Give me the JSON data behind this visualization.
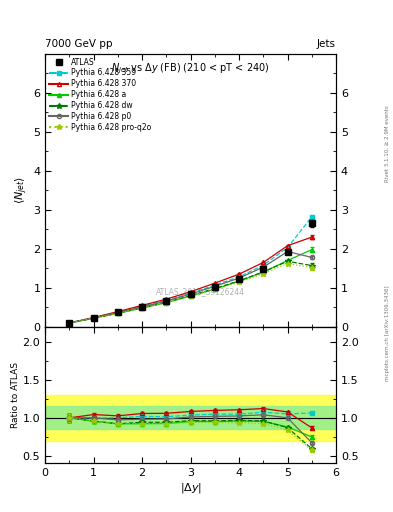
{
  "title_top": "7000 GeV pp",
  "title_top_right": "Jets",
  "main_title": "$N_{jet}$ vs $\\Delta y$ (FB) (210 < pT < 240)",
  "watermark": "ATLAS_2011_S9126244",
  "right_label_top": "Rivet 3.1.10, ≥ 2.9M events",
  "right_label_bottom": "mcplots.cern.ch [arXiv:1306.3436]",
  "ylabel_main": "$\\langle N_{jet}\\rangle$",
  "ylabel_ratio": "Ratio to ATLAS",
  "xlabel": "$|\\Delta y|$",
  "x_values": [
    0.5,
    1.0,
    1.5,
    2.0,
    2.5,
    3.0,
    3.5,
    4.0,
    4.5,
    5.0,
    5.5
  ],
  "atlas_y": [
    0.1,
    0.23,
    0.38,
    0.52,
    0.67,
    0.83,
    1.02,
    1.22,
    1.47,
    1.93,
    2.65
  ],
  "atlas_yerr": [
    0.01,
    0.01,
    0.01,
    0.02,
    0.02,
    0.02,
    0.03,
    0.03,
    0.04,
    0.05,
    0.09
  ],
  "p359_y": [
    0.1,
    0.23,
    0.38,
    0.53,
    0.68,
    0.86,
    1.07,
    1.28,
    1.58,
    2.03,
    2.82
  ],
  "p359_yerr": [
    0.005,
    0.005,
    0.007,
    0.009,
    0.01,
    0.012,
    0.014,
    0.016,
    0.019,
    0.024,
    0.032
  ],
  "p370_y": [
    0.1,
    0.24,
    0.39,
    0.55,
    0.71,
    0.9,
    1.12,
    1.35,
    1.65,
    2.08,
    2.3
  ],
  "p370_yerr": [
    0.005,
    0.006,
    0.008,
    0.01,
    0.011,
    0.013,
    0.016,
    0.019,
    0.023,
    0.029,
    0.055
  ],
  "pa_y": [
    0.1,
    0.22,
    0.35,
    0.48,
    0.62,
    0.79,
    0.97,
    1.17,
    1.4,
    1.7,
    1.98
  ],
  "pa_yerr": [
    0.005,
    0.005,
    0.007,
    0.009,
    0.01,
    0.012,
    0.013,
    0.016,
    0.019,
    0.024,
    0.055
  ],
  "pdw_y": [
    0.1,
    0.22,
    0.35,
    0.49,
    0.63,
    0.8,
    0.98,
    1.18,
    1.41,
    1.68,
    1.57
  ],
  "pdw_yerr": [
    0.005,
    0.005,
    0.007,
    0.009,
    0.01,
    0.012,
    0.013,
    0.016,
    0.019,
    0.024,
    0.055
  ],
  "pp0_y": [
    0.1,
    0.23,
    0.37,
    0.51,
    0.66,
    0.84,
    1.04,
    1.25,
    1.53,
    1.93,
    1.78
  ],
  "pp0_yerr": [
    0.005,
    0.005,
    0.007,
    0.009,
    0.01,
    0.012,
    0.014,
    0.016,
    0.019,
    0.024,
    0.04
  ],
  "pproq2o_y": [
    0.1,
    0.22,
    0.35,
    0.48,
    0.62,
    0.78,
    0.96,
    1.14,
    1.36,
    1.62,
    1.52
  ],
  "pproq2o_yerr": [
    0.005,
    0.005,
    0.007,
    0.009,
    0.01,
    0.012,
    0.013,
    0.016,
    0.019,
    0.024,
    0.065
  ],
  "band_yellow_lo": 0.7,
  "band_yellow_hi": 1.3,
  "band_green_lo": 0.85,
  "band_green_hi": 1.15,
  "ylim_main": [
    0.0,
    7.0
  ],
  "ylim_ratio": [
    0.4,
    2.2
  ],
  "yticks_main": [
    0,
    1,
    2,
    3,
    4,
    5,
    6
  ],
  "yticks_ratio": [
    0.5,
    1.0,
    1.5,
    2.0
  ],
  "xlim": [
    0.0,
    6.0
  ],
  "color_atlas": "#000000",
  "color_359": "#00CCCC",
  "color_370": "#CC0000",
  "color_a": "#00CC00",
  "color_dw": "#007700",
  "color_p0": "#666666",
  "color_proq2o": "#99CC00"
}
